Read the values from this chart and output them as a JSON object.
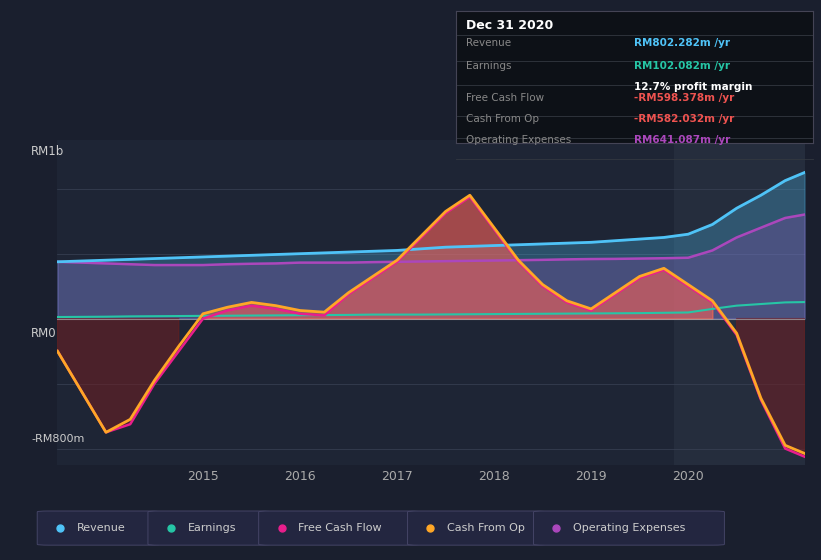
{
  "bg_color": "#1a1f2e",
  "plot_bg_color": "#1e2535",
  "title": "Dec 31 2020",
  "y_label_top": "RM1b",
  "y_label_bottom": "-RM800m",
  "y_label_mid": "RM0",
  "x_ticks": [
    2015,
    2016,
    2017,
    2018,
    2019,
    2020
  ],
  "x_min": 2013.5,
  "x_max": 2021.2,
  "y_min": -900,
  "y_max": 1100,
  "revenue_color": "#4fc3f7",
  "earnings_color": "#26c6a6",
  "fcf_color": "#e91e8c",
  "cashfromop_color": "#ffa726",
  "opex_color": "#ab47bc",
  "info_box": {
    "title": "Dec 31 2020",
    "revenue_label": "Revenue",
    "revenue_value": "RM802.282m /yr",
    "revenue_color": "#4fc3f7",
    "earnings_label": "Earnings",
    "earnings_value": "RM102.082m /yr",
    "earnings_color": "#26c6a6",
    "margin_text": "12.7% profit margin",
    "fcf_label": "Free Cash Flow",
    "fcf_value": "-RM598.378m /yr",
    "fcf_color": "#ef5350",
    "cashop_label": "Cash From Op",
    "cashop_value": "-RM582.032m /yr",
    "cashop_color": "#ef5350",
    "opex_label": "Operating Expenses",
    "opex_value": "RM641.087m /yr",
    "opex_color": "#ab47bc"
  },
  "legend": [
    {
      "label": "Revenue",
      "color": "#4fc3f7"
    },
    {
      "label": "Earnings",
      "color": "#26c6a6"
    },
    {
      "label": "Free Cash Flow",
      "color": "#e91e8c"
    },
    {
      "label": "Cash From Op",
      "color": "#ffa726"
    },
    {
      "label": "Operating Expenses",
      "color": "#ab47bc"
    }
  ],
  "x": [
    2013.5,
    2014.0,
    2014.25,
    2014.5,
    2014.75,
    2015.0,
    2015.25,
    2015.5,
    2015.75,
    2016.0,
    2016.25,
    2016.5,
    2016.75,
    2017.0,
    2017.25,
    2017.5,
    2017.75,
    2018.0,
    2018.25,
    2018.5,
    2018.75,
    2019.0,
    2019.25,
    2019.5,
    2019.75,
    2020.0,
    2020.25,
    2020.5,
    2020.75,
    2021.0,
    2021.2
  ],
  "revenue": [
    350,
    360,
    365,
    370,
    375,
    380,
    385,
    390,
    395,
    400,
    405,
    410,
    415,
    420,
    430,
    440,
    445,
    450,
    455,
    460,
    465,
    470,
    480,
    490,
    500,
    520,
    580,
    680,
    760,
    850,
    900
  ],
  "earnings": [
    10,
    12,
    14,
    15,
    16,
    17,
    18,
    19,
    20,
    21,
    22,
    23,
    25,
    25,
    25,
    26,
    27,
    28,
    29,
    30,
    31,
    32,
    33,
    34,
    36,
    38,
    60,
    80,
    90,
    100,
    102
  ],
  "fcf": [
    -200,
    -700,
    -650,
    -400,
    -200,
    0,
    50,
    80,
    60,
    30,
    20,
    150,
    250,
    350,
    500,
    650,
    750,
    550,
    350,
    200,
    100,
    50,
    150,
    250,
    300,
    200,
    100,
    -100,
    -500,
    -800,
    -850
  ],
  "cashfromop": [
    -200,
    -700,
    -620,
    -380,
    -170,
    30,
    70,
    100,
    80,
    50,
    40,
    160,
    260,
    360,
    510,
    660,
    760,
    560,
    360,
    210,
    110,
    60,
    160,
    260,
    310,
    210,
    110,
    -90,
    -490,
    -780,
    -830
  ],
  "opex": [
    350,
    340,
    335,
    330,
    330,
    330,
    335,
    338,
    340,
    345,
    345,
    345,
    348,
    350,
    352,
    354,
    356,
    358,
    360,
    362,
    365,
    367,
    368,
    370,
    372,
    375,
    420,
    500,
    560,
    620,
    641
  ]
}
